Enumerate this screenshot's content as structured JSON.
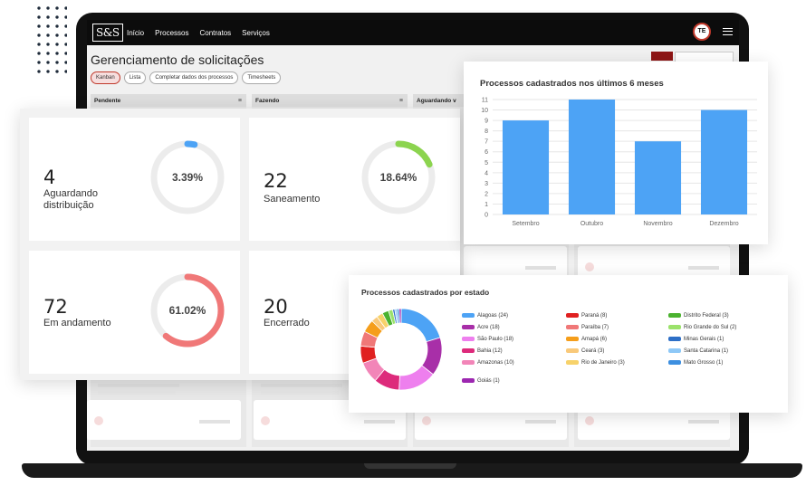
{
  "app": {
    "logo_text": "S&S",
    "nav": [
      "Início",
      "Processos",
      "Contratos",
      "Serviços"
    ],
    "avatar_initials": "TE",
    "page_title": "Gerenciamento de solicitações",
    "views": [
      "Kanban",
      "Lista",
      "Completar dados dos processos",
      "Timesheets"
    ],
    "active_view": "Kanban",
    "columns": [
      "Pendente",
      "Fazendo",
      "Aguardando v"
    ]
  },
  "stats": [
    {
      "value": "4",
      "label": "Aguardando distribuição",
      "percent_text": "3.39%",
      "percent": 3.39,
      "color": "#4da3f5"
    },
    {
      "value": "22",
      "label": "Saneamento",
      "percent_text": "18.64%",
      "percent": 18.64,
      "color": "#8cd44f"
    },
    {
      "value": "72",
      "label": "Em andamento",
      "percent_text": "61.02%",
      "percent": 61.02,
      "color": "#f07878"
    },
    {
      "value": "20",
      "label": "Encerrado",
      "percent_text": "",
      "percent": null,
      "color": "#d9d9d9"
    }
  ],
  "bar_chart": {
    "title": "Processos cadastrados nos últimos 6 meses"
  },
  "donut_chart": {
    "title": "Processos cadastrados por estado"
  },
  "chart_data": [
    {
      "type": "bar",
      "title": "Processos cadastrados nos últimos 6 meses",
      "categories": [
        "Setembro",
        "Outubro",
        "Novembro",
        "Dezembro"
      ],
      "values": [
        9,
        11,
        7,
        10
      ],
      "ylim": [
        0,
        11
      ],
      "yticks": [
        0,
        1,
        2,
        3,
        4,
        5,
        6,
        7,
        8,
        9,
        10,
        11
      ],
      "grid": true,
      "color": "#4da3f5",
      "xlabel": "",
      "ylabel": ""
    },
    {
      "type": "pie",
      "title": "Processos cadastrados por estado",
      "donut": true,
      "legend_position": "right",
      "slices": [
        {
          "label": "Alagoas (24)",
          "value": 24,
          "color": "#4da3f5"
        },
        {
          "label": "Acre (18)",
          "value": 18,
          "color": "#a82fa8"
        },
        {
          "label": "São Paulo (18)",
          "value": 18,
          "color": "#ee7fee"
        },
        {
          "label": "Bahia (12)",
          "value": 12,
          "color": "#dd2a7b"
        },
        {
          "label": "Amazonas (10)",
          "value": 10,
          "color": "#f285b8"
        },
        {
          "label": "Paraná (8)",
          "value": 8,
          "color": "#e02020"
        },
        {
          "label": "Paraíba (7)",
          "value": 7,
          "color": "#f07878"
        },
        {
          "label": "Amapá (6)",
          "value": 6,
          "color": "#f59e1b"
        },
        {
          "label": "Ceará (3)",
          "value": 3,
          "color": "#f9c97a"
        },
        {
          "label": "Rio de Janeiro (3)",
          "value": 3,
          "color": "#f7d26a"
        },
        {
          "label": "Distrito Federal (3)",
          "value": 3,
          "color": "#4bb22f"
        },
        {
          "label": "Rio Grande do Sul (2)",
          "value": 2,
          "color": "#9be26b"
        },
        {
          "label": "Minas Gerais (1)",
          "value": 1,
          "color": "#2d6fc7"
        },
        {
          "label": "Santa Catarina (1)",
          "value": 1,
          "color": "#8ec8f7"
        },
        {
          "label": "Mato Grosso (1)",
          "value": 1,
          "color": "#3d8fe0"
        },
        {
          "label": "Goiás (1)",
          "value": 1,
          "color": "#9c27b0"
        }
      ]
    }
  ]
}
